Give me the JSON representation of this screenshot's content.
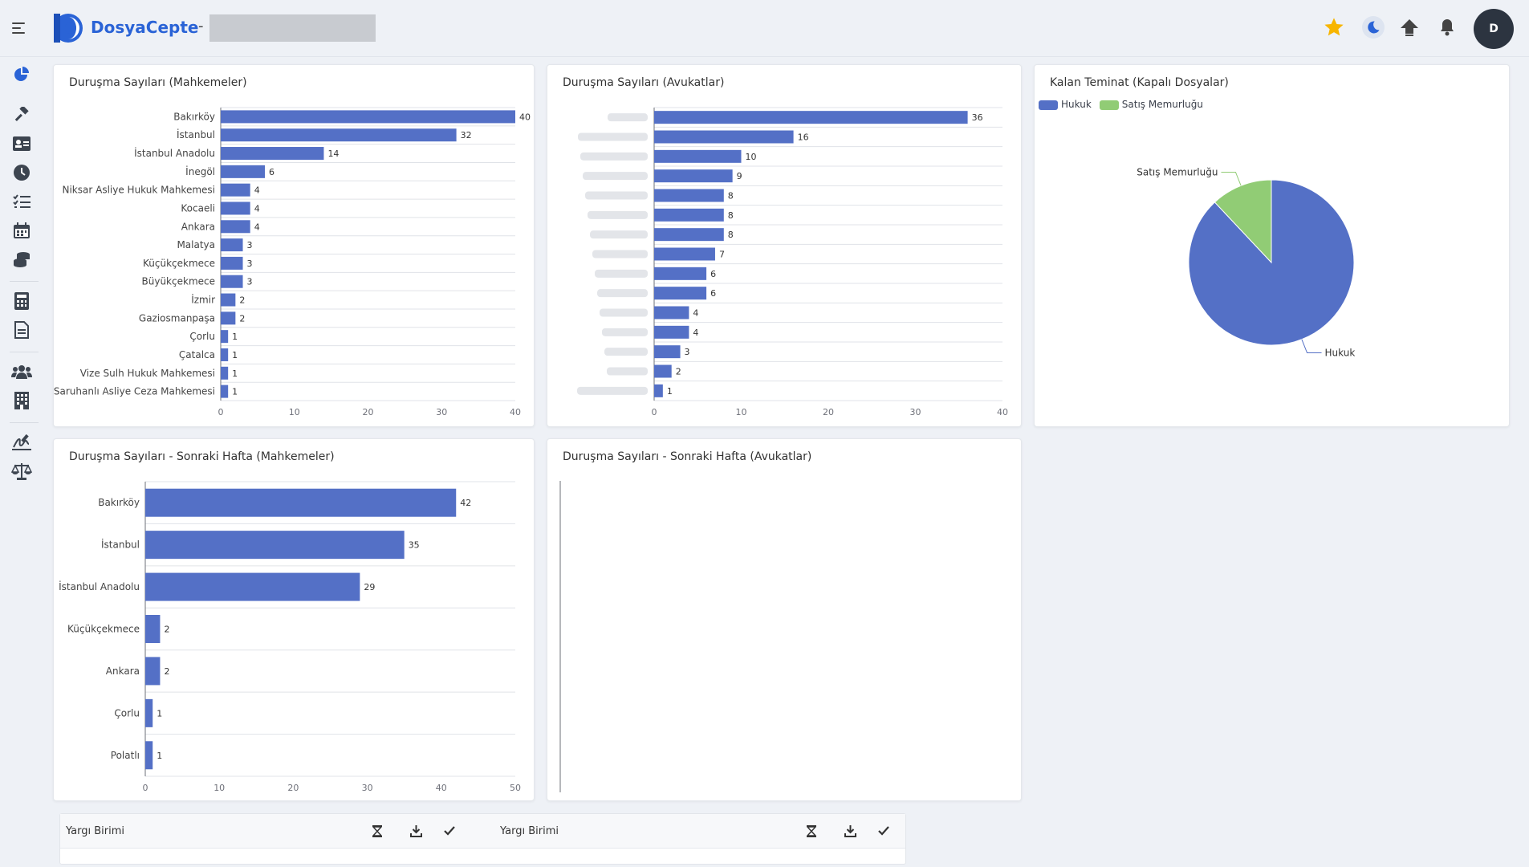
{
  "app": {
    "brand": "DosyaCepte",
    "separator": "-",
    "avatar_initial": "D"
  },
  "colors": {
    "accent": "#2a63d6",
    "bar": "#5470c6",
    "green": "#91cc75",
    "star": "#f7b500"
  },
  "topbar_icons": [
    "menu-icon",
    "star-icon",
    "moon-icon",
    "upload-icon",
    "bell-icon"
  ],
  "sidebar_icons": [
    "chart-pie-icon",
    "gavel-icon",
    "id-card-icon",
    "clock-icon",
    "task-list-icon",
    "calendar-icon",
    "coins-icon",
    "calculator-icon",
    "document-icon",
    "users-icon",
    "building-icon",
    "signature-icon",
    "scales-icon"
  ],
  "charts": [
    {
      "title": "Duruşma Sayıları (Mahkemeler)",
      "chart_data": {
        "type": "bar",
        "orientation": "horizontal",
        "categories": [
          "Bakırköy",
          "İstanbul",
          "İstanbul Anadolu",
          "İnegöl",
          "Niksar Asliye Hukuk Mahkemesi",
          "Kocaeli",
          "Ankara",
          "Malatya",
          "Küçükçekmece",
          "Büyükçekmece",
          "İzmir",
          "Gaziosmanpaşa",
          "Çorlu",
          "Çatalca",
          "Vize Sulh Hukuk Mahkemesi",
          "Saruhanlı Asliye Ceza Mahkemesi"
        ],
        "values": [
          40,
          32,
          14,
          6,
          4,
          4,
          4,
          3,
          3,
          3,
          2,
          2,
          1,
          1,
          1,
          1
        ],
        "xlim": [
          0,
          40
        ],
        "xticks": [
          0,
          10,
          20,
          30,
          40
        ]
      }
    },
    {
      "title": "Duruşma Sayıları (Avukatlar)",
      "chart_data": {
        "type": "bar",
        "orientation": "horizontal",
        "categories_redacted": true,
        "values": [
          36,
          16,
          10,
          9,
          8,
          8,
          8,
          7,
          6,
          6,
          4,
          4,
          3,
          2,
          1
        ],
        "xlim": [
          0,
          40
        ],
        "xticks": [
          0,
          10,
          20,
          30,
          40
        ]
      }
    },
    {
      "title": "Kalan Teminat (Kapalı Dosyalar)",
      "chart_data": {
        "type": "pie",
        "legend": [
          "Hukuk",
          "Satış Memurluğu"
        ],
        "labels": [
          "Hukuk",
          "Satış Memurluğu"
        ],
        "values": [
          88,
          12
        ],
        "legend_position": "top-left"
      }
    },
    {
      "title": "Duruşma Sayıları - Sonraki Hafta (Mahkemeler)",
      "chart_data": {
        "type": "bar",
        "orientation": "horizontal",
        "categories": [
          "Bakırköy",
          "İstanbul",
          "İstanbul Anadolu",
          "Küçükçekmece",
          "Ankara",
          "Çorlu",
          "Polatlı"
        ],
        "values": [
          42,
          35,
          29,
          2,
          2,
          1,
          1
        ],
        "xlim": [
          0,
          50
        ],
        "xticks": [
          0,
          10,
          20,
          30,
          40,
          50
        ]
      }
    },
    {
      "title": "Duruşma Sayıları - Sonraki Hafta (Avukatlar)",
      "chart_data": {
        "type": "bar",
        "orientation": "horizontal",
        "categories": [],
        "values": []
      }
    }
  ],
  "bottom_table": {
    "columns": [
      {
        "label": "Yargı Birimi"
      },
      {
        "label": "Yargı Birimi"
      }
    ],
    "icons": [
      "hourglass-icon",
      "download-icon",
      "check-icon"
    ]
  }
}
